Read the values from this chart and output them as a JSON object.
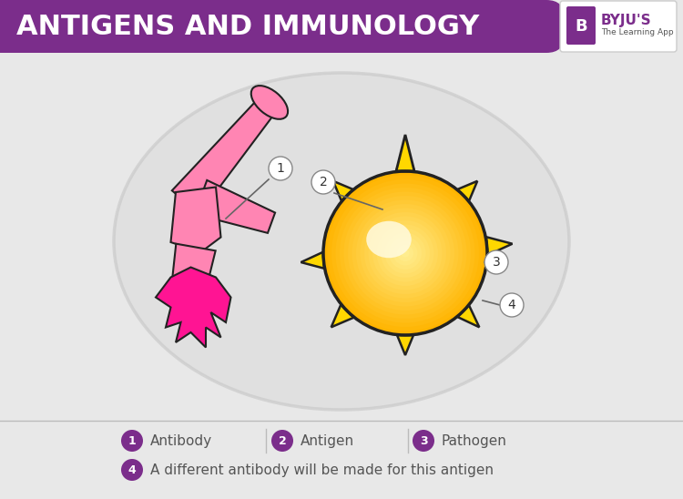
{
  "title": "ANTIGENS AND IMMUNOLOGY",
  "title_bg_color": "#7B2D8B",
  "title_text_color": "#FFFFFF",
  "bg_color": "#E8E8E8",
  "legend_items": [
    {
      "num": "1",
      "label": "Antibody"
    },
    {
      "num": "2",
      "label": "Antigen"
    },
    {
      "num": "3",
      "label": "Pathogen"
    },
    {
      "num": "4",
      "label": "A different antibody will be made for this antigen"
    }
  ],
  "legend_circle_color": "#7B2D8B",
  "legend_text_color": "#555555",
  "byju_text": "BYJU'S",
  "byju_subtext": "The Learning App",
  "byju_purple": "#7B2D8B",
  "pink_light": "#FF85B3",
  "pink_mid": "#FF69B4",
  "pink_dark": "#FF1493",
  "gold": "#FFD700",
  "gold_dark": "#DAA520",
  "outline": "#222222"
}
